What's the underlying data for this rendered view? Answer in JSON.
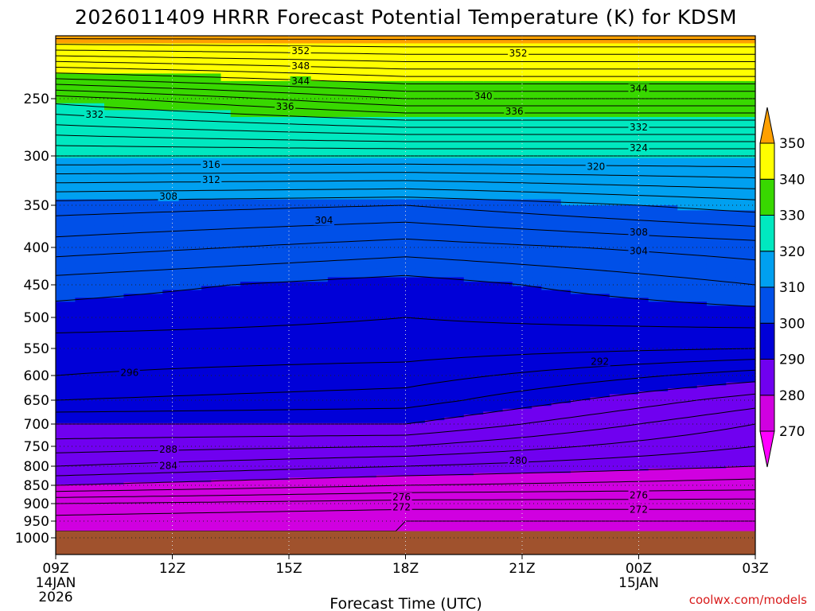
{
  "chart_data": {
    "type": "heatmap",
    "title": "2026011409 HRRR Forecast Potential Temperature (K) for KDSM",
    "xlabel": "Forecast Time (UTC)",
    "ylabel": "",
    "credit": "coolwx.com/models",
    "x_ticks": [
      {
        "hour": 0,
        "label": "09Z",
        "sub1": "14JAN",
        "sub2": "2026"
      },
      {
        "hour": 3,
        "label": "12Z",
        "sub1": "",
        "sub2": ""
      },
      {
        "hour": 6,
        "label": "15Z",
        "sub1": "",
        "sub2": ""
      },
      {
        "hour": 9,
        "label": "18Z",
        "sub1": "",
        "sub2": ""
      },
      {
        "hour": 12,
        "label": "21Z",
        "sub1": "",
        "sub2": ""
      },
      {
        "hour": 15,
        "label": "00Z",
        "sub1": "15JAN",
        "sub2": ""
      },
      {
        "hour": 18,
        "label": "03Z",
        "sub1": "",
        "sub2": ""
      }
    ],
    "xlim": [
      0,
      18
    ],
    "y_ticks": [
      250,
      300,
      350,
      400,
      450,
      500,
      550,
      600,
      650,
      700,
      750,
      800,
      850,
      900,
      950,
      1000
    ],
    "ylim_hpa": [
      200,
      1030
    ],
    "surface_pressure_hpa": 980,
    "colorbar": {
      "levels": [
        270,
        280,
        290,
        300,
        310,
        320,
        330,
        340,
        350
      ],
      "labels": [
        "270",
        "280",
        "290",
        "300",
        "310",
        "320",
        "330",
        "340",
        "350"
      ],
      "colors": [
        "#ff00ff",
        "#d000e0",
        "#7000f0",
        "#0000d8",
        "#0050e8",
        "#00a0f0",
        "#00e8c0",
        "#38d800",
        "#ffff00",
        "#ffa000"
      ]
    },
    "ground_color": "#a0522d",
    "contour_interval_K": 2,
    "series": [
      {
        "name": "theta_profile_hour_0",
        "pressure_hpa": [
          200,
          250,
          300,
          350,
          400,
          450,
          500,
          550,
          600,
          650,
          700,
          750,
          800,
          850,
          900,
          950,
          980
        ],
        "theta_K": [
          353,
          331,
          320,
          309,
          305,
          301,
          299,
          297,
          296,
          294,
          290,
          287,
          284,
          280,
          274,
          271,
          270
        ]
      },
      {
        "name": "theta_profile_hour_9",
        "pressure_hpa": [
          200,
          250,
          300,
          350,
          400,
          450,
          500,
          550,
          600,
          650,
          700,
          750,
          800,
          850,
          900,
          950,
          980
        ],
        "theta_K": [
          353,
          336,
          320,
          308,
          303,
          299,
          298,
          297,
          295,
          293,
          290,
          286,
          282,
          278,
          273,
          270,
          270
        ]
      },
      {
        "name": "theta_profile_hour_18",
        "pressure_hpa": [
          200,
          250,
          300,
          350,
          400,
          450,
          500,
          550,
          600,
          650,
          700,
          750,
          800,
          850,
          900,
          950,
          980
        ],
        "theta_K": [
          353,
          336,
          320,
          311,
          305,
          302,
          299,
          296,
          291,
          287,
          284,
          282,
          280,
          277,
          273,
          270,
          270
        ]
      }
    ],
    "contour_labels": [
      {
        "value": "352",
        "hour": 6.3,
        "p": 212
      },
      {
        "value": "352",
        "hour": 11.9,
        "p": 214
      },
      {
        "value": "348",
        "hour": 6.3,
        "p": 224
      },
      {
        "value": "344",
        "hour": 6.3,
        "p": 236
      },
      {
        "value": "344",
        "hour": 15.0,
        "p": 242
      },
      {
        "value": "340",
        "hour": 11.0,
        "p": 248
      },
      {
        "value": "336",
        "hour": 5.9,
        "p": 257
      },
      {
        "value": "336",
        "hour": 11.8,
        "p": 261
      },
      {
        "value": "332",
        "hour": 1.0,
        "p": 264
      },
      {
        "value": "332",
        "hour": 15.0,
        "p": 275
      },
      {
        "value": "324",
        "hour": 15.0,
        "p": 293
      },
      {
        "value": "320",
        "hour": 13.9,
        "p": 311
      },
      {
        "value": "316",
        "hour": 4.0,
        "p": 309
      },
      {
        "value": "312",
        "hour": 4.0,
        "p": 324
      },
      {
        "value": "308",
        "hour": 2.9,
        "p": 341
      },
      {
        "value": "304",
        "hour": 6.9,
        "p": 368
      },
      {
        "value": "308",
        "hour": 15.0,
        "p": 382
      },
      {
        "value": "304",
        "hour": 15.0,
        "p": 405
      },
      {
        "value": "292",
        "hour": 14.0,
        "p": 574
      },
      {
        "value": "296",
        "hour": 1.9,
        "p": 595
      },
      {
        "value": "288",
        "hour": 2.9,
        "p": 758
      },
      {
        "value": "284",
        "hour": 2.9,
        "p": 799
      },
      {
        "value": "280",
        "hour": 11.9,
        "p": 786
      },
      {
        "value": "276",
        "hour": 8.9,
        "p": 883
      },
      {
        "value": "276",
        "hour": 15.0,
        "p": 877
      },
      {
        "value": "272",
        "hour": 8.9,
        "p": 910
      },
      {
        "value": "272",
        "hour": 15.0,
        "p": 917
      }
    ]
  }
}
